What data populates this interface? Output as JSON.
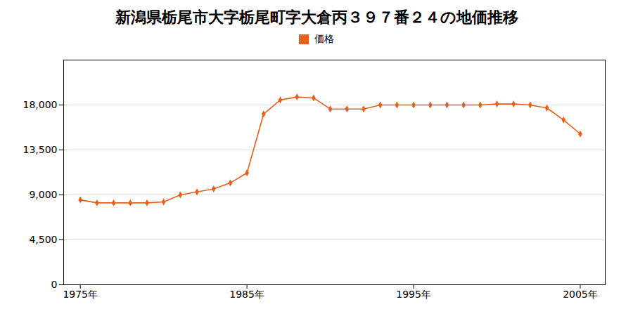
{
  "chart_data": {
    "type": "line",
    "title": "新潟県栃尾市大字栃尾町字大倉丙３９７番２４の地価推移",
    "x": [
      1975,
      1976,
      1977,
      1978,
      1979,
      1980,
      1981,
      1982,
      1983,
      1984,
      1985,
      1986,
      1987,
      1988,
      1989,
      1990,
      1991,
      1992,
      1993,
      1994,
      1995,
      1996,
      1997,
      1998,
      1999,
      2000,
      2001,
      2002,
      2003,
      2004,
      2005
    ],
    "series": [
      {
        "name": "価格",
        "color": "#e8601c",
        "marker": "diamond",
        "values": [
          8500,
          8200,
          8200,
          8200,
          8200,
          8300,
          9000,
          9300,
          9600,
          10200,
          11200,
          17100,
          18500,
          18800,
          18700,
          17600,
          17600,
          17600,
          18000,
          18000,
          18000,
          18000,
          18000,
          18000,
          18000,
          18100,
          18100,
          18000,
          17700,
          16500,
          15100
        ]
      }
    ],
    "xlim": [
      1974,
      2006.5
    ],
    "xticks": [
      {
        "value": 1975,
        "label": "1975年"
      },
      {
        "value": 1985,
        "label": "1985年"
      },
      {
        "value": 1995,
        "label": "1995年"
      },
      {
        "value": 2005,
        "label": "2005年"
      }
    ],
    "ylim": [
      0,
      22500
    ],
    "yticks": [
      0,
      {
        "value": 4500,
        "label": "4,500"
      },
      {
        "value": 9000,
        "label": "9,000"
      },
      {
        "value": 13500,
        "label": "13,500"
      },
      {
        "value": 18000,
        "label": "18,000"
      }
    ],
    "grid": true,
    "legend": "top"
  }
}
